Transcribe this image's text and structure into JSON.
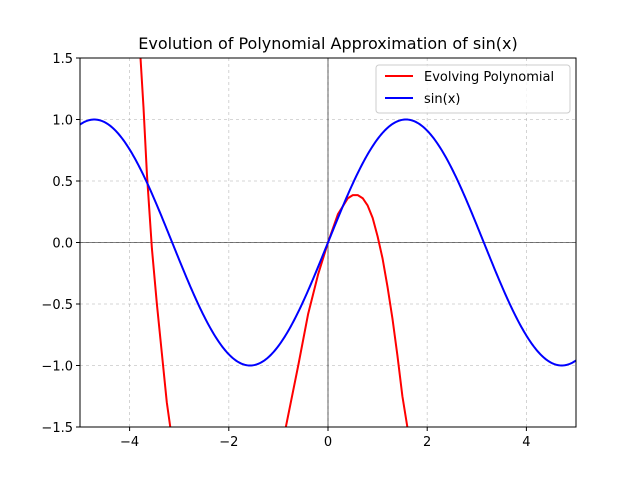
{
  "chart_data": {
    "type": "line",
    "title": "Evolution of Polynomial Approximation of sin(x)",
    "xlabel": "",
    "ylabel": "",
    "xlim": [
      -5,
      5
    ],
    "ylim": [
      -1.5,
      1.5
    ],
    "grid": true,
    "grid_style": "dashed",
    "legend_position": "top-right",
    "x_ticks": [
      -4,
      -2,
      0,
      2,
      4
    ],
    "x_tick_labels": [
      "−4",
      "−2",
      "0",
      "2",
      "4"
    ],
    "y_ticks": [
      -1.5,
      -1.0,
      -0.5,
      0.0,
      0.5,
      1.0,
      1.5
    ],
    "y_tick_labels": [
      "−1.5",
      "−1.0",
      "−0.5",
      "0.0",
      "0.5",
      "1.0",
      "1.5"
    ],
    "reference_lines": {
      "x": 0,
      "y": 0
    },
    "series": [
      {
        "name": "Evolving Polynomial",
        "color": "#ff0000",
        "description": "polynomial ~ sin(x) approximation, visible peak near x=0.6, y=0.38",
        "x": [
          -3.78,
          -3.72,
          -3.65,
          -3.55,
          -3.45,
          -3.35,
          -3.25,
          -3.18,
          -0.85,
          -0.6,
          -0.4,
          -0.2,
          0.0,
          0.2,
          0.4,
          0.5,
          0.6,
          0.7,
          0.8,
          0.9,
          1.0,
          1.1,
          1.2,
          1.3,
          1.4,
          1.5,
          1.6
        ],
        "y": [
          1.5,
          1.1,
          0.55,
          -0.05,
          -0.5,
          -0.9,
          -1.3,
          -1.5,
          -1.5,
          -1.0,
          -0.58,
          -0.26,
          0.0,
          0.23,
          0.36,
          0.385,
          0.385,
          0.36,
          0.3,
          0.2,
          0.05,
          -0.13,
          -0.36,
          -0.62,
          -0.92,
          -1.25,
          -1.5
        ]
      },
      {
        "name": "sin(x)",
        "color": "#0000ff",
        "function": "sin",
        "x_range": [
          -5,
          5
        ]
      }
    ]
  }
}
